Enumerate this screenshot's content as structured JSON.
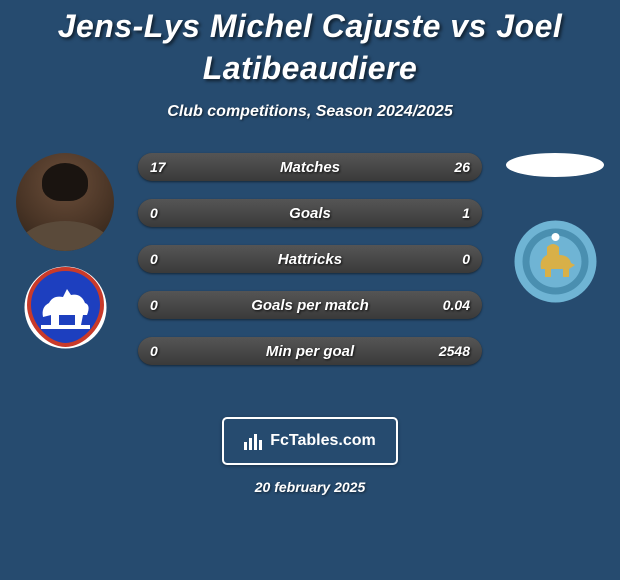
{
  "background_color": "#264b6f",
  "title": "Jens-Lys Michel Cajuste vs Joel Latibeaudiere",
  "subtitle": "Club competitions, Season 2024/2025",
  "player1": {
    "crest": {
      "bg": "#1d3fbf",
      "border": "#c93a2a",
      "horse": "#ffffff"
    }
  },
  "player2": {
    "crest": {
      "bg": "#6fb4d4",
      "inner": "#4a8fb0",
      "elephant": "#d8b048"
    }
  },
  "bars": {
    "track_color": "#2a2a2a",
    "left_fill_gradient": [
      "#3a3a3a",
      "#555555"
    ],
    "right_fill_gradient": [
      "#3a3a3a",
      "#555555"
    ],
    "rows": [
      {
        "label": "Matches",
        "left": "17",
        "right": "26",
        "left_pct": 40,
        "right_pct": 60
      },
      {
        "label": "Goals",
        "left": "0",
        "right": "1",
        "left_pct": 5,
        "right_pct": 95
      },
      {
        "label": "Hattricks",
        "left": "0",
        "right": "0",
        "left_pct": 50,
        "right_pct": 50
      },
      {
        "label": "Goals per match",
        "left": "0",
        "right": "0.04",
        "left_pct": 5,
        "right_pct": 95
      },
      {
        "label": "Min per goal",
        "left": "0",
        "right": "2548",
        "left_pct": 5,
        "right_pct": 95
      }
    ]
  },
  "footer": {
    "badge_text": "FcTables.com",
    "date": "20 february 2025"
  }
}
